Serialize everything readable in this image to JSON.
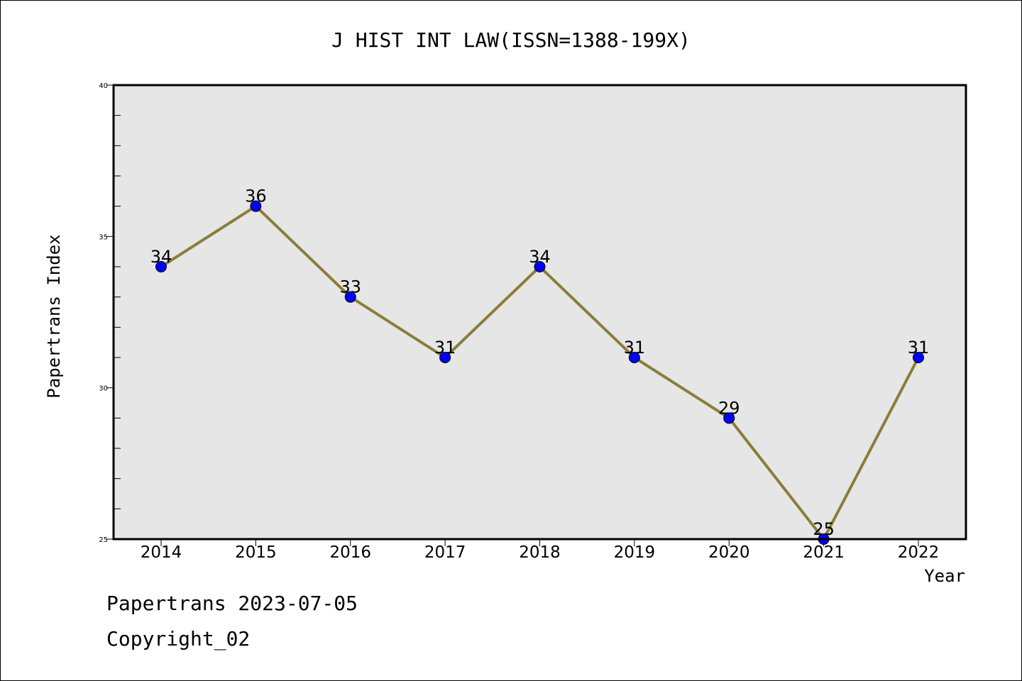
{
  "chart_data": {
    "type": "line",
    "title": "J HIST INT LAW(ISSN=1388-199X)",
    "xlabel": "Year",
    "ylabel": "Papertrans Index",
    "categories": [
      "2014",
      "2015",
      "2016",
      "2017",
      "2018",
      "2019",
      "2020",
      "2021",
      "2022"
    ],
    "values": [
      34,
      36,
      33,
      31,
      34,
      31,
      29,
      25,
      31
    ],
    "data_labels": [
      "34",
      "36",
      "33",
      "31",
      "34",
      "31",
      "29",
      "25",
      "31"
    ],
    "ylim": [
      25,
      40
    ],
    "yticks": [
      25,
      30,
      35,
      40
    ],
    "yticks_labels": [
      "25",
      "30",
      "35",
      "40"
    ],
    "grid": false,
    "colors": {
      "line": "#8b7d3a",
      "marker": "#0000ff",
      "plot_background": "#e6e6e6"
    }
  },
  "footer": {
    "line1": "Papertrans 2023-07-05",
    "line2": "Copyright_02"
  }
}
